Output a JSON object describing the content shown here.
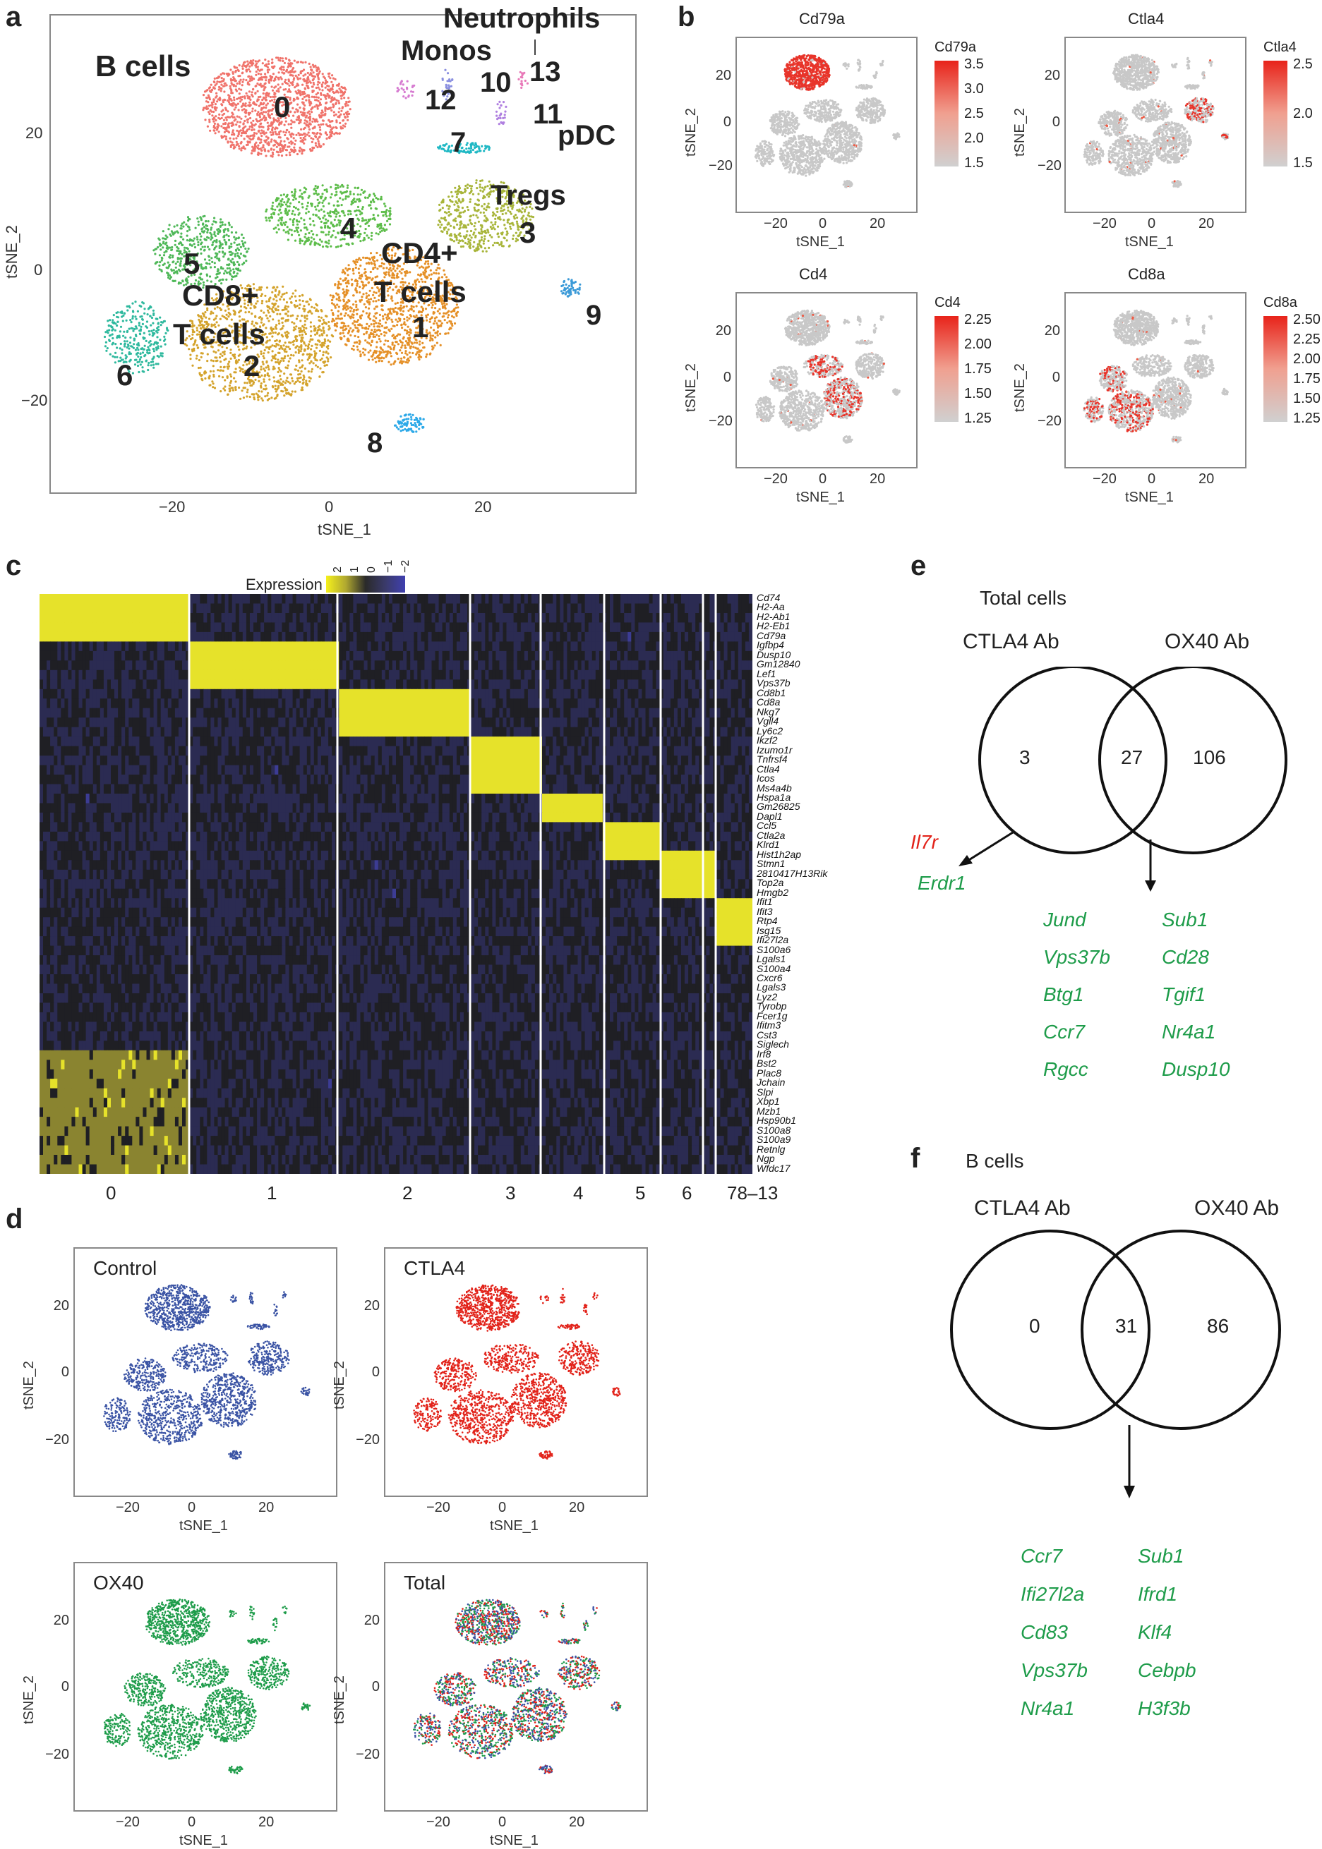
{
  "panels": {
    "a": {
      "label": "a",
      "x_title": "tSNE_1",
      "y_title": "tSNE_2",
      "x_ticks": [
        "−20",
        "0",
        "20"
      ],
      "y_ticks": [
        "20",
        "0",
        "−20"
      ],
      "cell_types": [
        "B cells",
        "Monos",
        "Neutrophils",
        "pDC",
        "Tregs",
        "CD4+",
        "T cells",
        "CD8+",
        "T cells"
      ],
      "clusters": [
        "0",
        "1",
        "2",
        "3",
        "4",
        "5",
        "6",
        "7",
        "8",
        "9",
        "10",
        "11",
        "12",
        "13"
      ],
      "cluster_colors": [
        "#f0736b",
        "#e59027",
        "#d4a32c",
        "#a8b53a",
        "#5dbd4a",
        "#4fb858",
        "#2fb99e",
        "#1fb8c4",
        "#2da9e8",
        "#3b9ad8",
        "#8a8fe0",
        "#b080e0",
        "#d67ad0",
        "#e878b8"
      ]
    },
    "b": {
      "label": "b",
      "plots": [
        {
          "title": "Cd79a",
          "legend_title": "Cd79a",
          "legend_ticks": [
            "3.5",
            "3.0",
            "2.5",
            "2.0",
            "1.5"
          ],
          "x_ticks": [
            "−20",
            "0",
            "20"
          ],
          "y_ticks": [
            "20",
            "0",
            "−20"
          ],
          "x_title": "tSNE_1",
          "y_title": "tSNE_2"
        },
        {
          "title": "Ctla4",
          "legend_title": "Ctla4",
          "legend_ticks": [
            "2.5",
            "2.0",
            "1.5"
          ],
          "x_ticks": [
            "−20",
            "0",
            "20"
          ],
          "y_ticks": [
            "20",
            "0",
            "−20"
          ],
          "x_title": "tSNE_1",
          "y_title": "tSNE_2"
        },
        {
          "title": "Cd4",
          "legend_title": "Cd4",
          "legend_ticks": [
            "2.25",
            "2.00",
            "1.75",
            "1.50",
            "1.25"
          ],
          "x_ticks": [
            "−20",
            "0",
            "20"
          ],
          "y_ticks": [
            "20",
            "0",
            "−20"
          ],
          "x_title": "tSNE_1",
          "y_title": "tSNE_2"
        },
        {
          "title": "Cd8a",
          "legend_title": "Cd8a",
          "legend_ticks": [
            "2.50",
            "2.25",
            "2.00",
            "1.75",
            "1.50",
            "1.25"
          ],
          "x_ticks": [
            "−20",
            "0",
            "20"
          ],
          "y_ticks": [
            "20",
            "0",
            "−20"
          ],
          "x_title": "tSNE_1",
          "y_title": "tSNE_2"
        }
      ]
    },
    "c": {
      "label": "c",
      "legend_title": "Expression",
      "legend_ticks": [
        "2",
        "1",
        "0",
        "−1",
        "−2"
      ],
      "cluster_labels": [
        "0",
        "1",
        "2",
        "3",
        "4",
        "5",
        "6",
        "78–13"
      ],
      "genes": [
        "Cd74",
        "H2-Aa",
        "H2-Ab1",
        "H2-Eb1",
        "Cd79a",
        "Igfbp4",
        "Dusp10",
        "Gm12840",
        "Lef1",
        "Vps37b",
        "Cd8b1",
        "Cd8a",
        "Nkg7",
        "Vgll4",
        "Ly6c2",
        "Ikzf2",
        "Izumo1r",
        "Tnfrsf4",
        "Ctla4",
        "Icos",
        "Ms4a4b",
        "Hspa1a",
        "Gm26825",
        "Dapl1",
        "Ccl5",
        "Ctla2a",
        "Klrd1",
        "Hist1h2ap",
        "Stmn1",
        "2810417H13Rik",
        "Top2a",
        "Hmgb2",
        "Ifit1",
        "Ifit3",
        "Rtp4",
        "Isg15",
        "Ifi27l2a",
        "S100a6",
        "Lgals1",
        "S100a4",
        "Cxcr6",
        "Lgals3",
        "Lyz2",
        "Tyrobp",
        "Fcer1g",
        "Ifitm3",
        "Cst3",
        "Siglech",
        "Irf8",
        "Bst2",
        "Plac8",
        "Jchain",
        "Slpi",
        "Xbp1",
        "Mzb1",
        "Hsp90b1",
        "S100a8",
        "S100a9",
        "Retnlg",
        "Ngp",
        "Wfdc17"
      ]
    },
    "d": {
      "label": "d",
      "plots": [
        {
          "title": "Control",
          "color": "#3a53a4",
          "x_ticks": [
            "−20",
            "0",
            "20"
          ],
          "y_ticks": [
            "20",
            "0",
            "−20"
          ],
          "x_title": "tSNE_1",
          "y_title": "tSNE_2"
        },
        {
          "title": "CTLA4",
          "color": "#e2231a",
          "x_ticks": [
            "−20",
            "0",
            "20"
          ],
          "y_ticks": [
            "20",
            "0",
            "−20"
          ],
          "x_title": "tSNE_1",
          "y_title": "tSNE_2"
        },
        {
          "title": "OX40",
          "color": "#1e9c4a",
          "x_ticks": [
            "−20",
            "0",
            "20"
          ],
          "y_ticks": [
            "20",
            "0",
            "−20"
          ],
          "x_title": "tSNE_1",
          "y_title": "tSNE_2"
        },
        {
          "title": "Total",
          "color": "#1e9c4a",
          "x_ticks": [
            "−20",
            "0",
            "20"
          ],
          "y_ticks": [
            "20",
            "0",
            "−20"
          ],
          "x_title": "tSNE_1",
          "y_title": "tSNE_2"
        }
      ]
    },
    "e": {
      "label": "e",
      "title": "Total cells",
      "left_set": "CTLA4 Ab",
      "right_set": "OX40 Ab",
      "left_only": "3",
      "overlap": "27",
      "right_only": "106",
      "left_genes_red": [
        "Il7r"
      ],
      "left_genes_green": [
        "Erdr1"
      ],
      "overlap_genes_col1": [
        "Jund",
        "Vps37b",
        "Btg1",
        "Ccr7",
        "Rgcc"
      ],
      "overlap_genes_col2": [
        "Sub1",
        "Cd28",
        "Tgif1",
        "Nr4a1",
        "Dusp10"
      ]
    },
    "f": {
      "label": "f",
      "title": "B cells",
      "left_set": "CTLA4 Ab",
      "right_set": "OX40 Ab",
      "left_only": "0",
      "overlap": "31",
      "right_only": "86",
      "overlap_genes_col1": [
        "Ccr7",
        "Ifi27l2a",
        "Cd83",
        "Vps37b",
        "Nr4a1"
      ],
      "overlap_genes_col2": [
        "Sub1",
        "Ifrd1",
        "Klf4",
        "Cebpb",
        "H3f3b"
      ]
    }
  }
}
